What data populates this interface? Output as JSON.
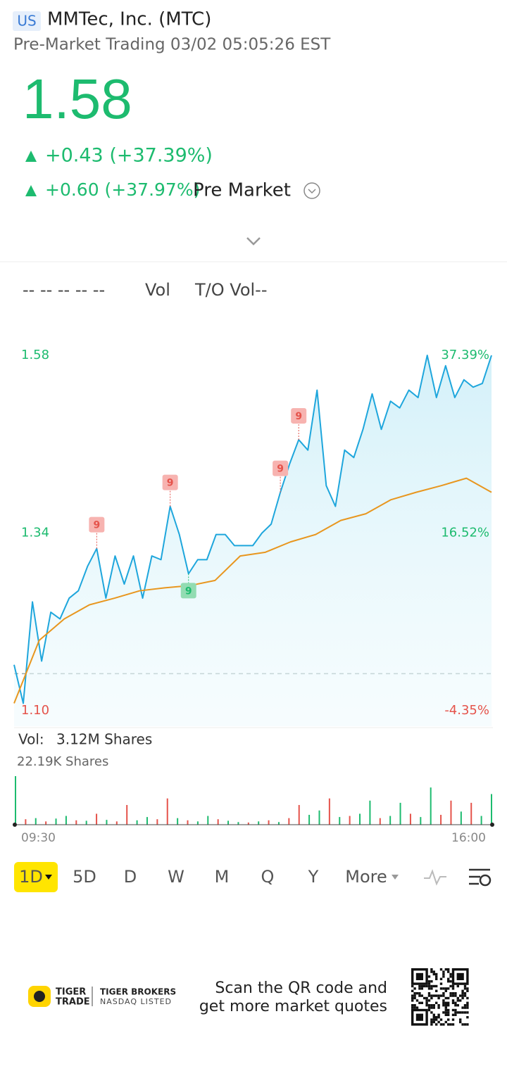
{
  "header": {
    "market": "US",
    "name": "MMTec, Inc. (MTC)",
    "status": "Pre-Market Trading 03/02 05:05:26 EST"
  },
  "quote": {
    "price": "1.58",
    "change": "+0.43 (+37.39%)",
    "premarket_change": "+0.60 (+37.97%)",
    "premarket_label": "Pre Market"
  },
  "indicators": {
    "placeholders": "-- -- -- -- --",
    "vol": "Vol",
    "turnover": "T/O Vol--"
  },
  "chart_data": [
    {
      "type": "line",
      "ylim": [
        1.1,
        1.58
      ],
      "yticks": [
        1.58,
        1.34,
        {
          "value": 1.1,
          "label": "1.10"
        }
      ],
      "y2lim": [
        -4.35,
        37.39
      ],
      "y2ticks": [
        {
          "value": 37.39,
          "label": "37.39%"
        },
        {
          "value": 16.52,
          "label": "16.52%"
        },
        {
          "value": -4.35,
          "label": "-4.35%"
        }
      ],
      "reference_line": 1.15,
      "series": [
        {
          "color": "#1ea6dc",
          "values": [
            1.162,
            1.11,
            1.247,
            1.167,
            1.233,
            1.224,
            1.252,
            1.262,
            1.295,
            1.319,
            1.252,
            1.309,
            1.271,
            1.309,
            1.252,
            1.309,
            1.304,
            1.376,
            1.338,
            1.285,
            1.304,
            1.304,
            1.338,
            1.338,
            1.323,
            1.323,
            1.323,
            1.34,
            1.352,
            1.395,
            1.433,
            1.466,
            1.452,
            1.533,
            1.404,
            1.376,
            1.452,
            1.442,
            1.48,
            1.528,
            1.48,
            1.518,
            1.509,
            1.533,
            1.523,
            1.58,
            1.523,
            1.566,
            1.523,
            1.547,
            1.537,
            1.542,
            1.58
          ]
        },
        {
          "color": "#e8961e",
          "values": [
            1.11,
            1.195,
            1.224,
            1.243,
            1.252,
            1.262,
            1.266,
            1.269,
            1.276,
            1.309,
            1.314,
            1.328,
            1.338,
            1.357,
            1.366,
            1.385,
            1.395,
            1.404,
            1.414,
            1.395
          ]
        }
      ],
      "signals": [
        {
          "text": "9",
          "kind": "sell",
          "point": 9
        },
        {
          "text": "9",
          "kind": "sell",
          "point": 17
        },
        {
          "text": "9",
          "kind": "buy",
          "point": 19
        },
        {
          "text": "9",
          "kind": "sell",
          "point": 29
        },
        {
          "text": "9",
          "kind": "sell",
          "point": 31
        }
      ]
    },
    {
      "type": "bar",
      "title": "Vol:",
      "total": "3.12M Shares",
      "ylim": [
        0,
        22190
      ],
      "yticks": [
        {
          "value": 22190,
          "label": "22.19K Shares"
        }
      ],
      "time_labels": [
        "09:30",
        "16:00"
      ],
      "values": [
        22190,
        2500,
        3000,
        1500,
        2800,
        4000,
        2000,
        1800,
        5000,
        2200,
        1500,
        9000,
        2000,
        3500,
        2500,
        12000,
        3000,
        2000,
        1500,
        4000,
        2500,
        1800,
        1200,
        1000,
        1500,
        2000,
        1200,
        3000,
        9000,
        4500,
        6500,
        12000,
        3500,
        4000,
        5000,
        11000,
        3000,
        4000,
        10000,
        5000,
        3500,
        17000,
        4500,
        11000,
        6000,
        10000,
        4000,
        14000
      ],
      "colors": [
        "#1dbb6f",
        "#e5534b",
        "#1dbb6f",
        "#e5534b",
        "#1dbb6f",
        "#1dbb6f",
        "#e5534b",
        "#1dbb6f",
        "#e5534b",
        "#1dbb6f",
        "#e5534b",
        "#e5534b",
        "#1dbb6f",
        "#1dbb6f",
        "#e5534b",
        "#e5534b",
        "#1dbb6f",
        "#e5534b",
        "#1dbb6f",
        "#1dbb6f",
        "#e5534b",
        "#1dbb6f",
        "#1dbb6f",
        "#e5534b",
        "#1dbb6f",
        "#e5534b",
        "#1dbb6f",
        "#e5534b",
        "#e5534b",
        "#1dbb6f",
        "#1dbb6f",
        "#e5534b",
        "#1dbb6f",
        "#e5534b",
        "#1dbb6f",
        "#1dbb6f",
        "#e5534b",
        "#1dbb6f",
        "#1dbb6f",
        "#e5534b",
        "#1dbb6f",
        "#1dbb6f",
        "#e5534b",
        "#e5534b",
        "#1dbb6f",
        "#e5534b",
        "#1dbb6f",
        "#1dbb6f"
      ]
    }
  ],
  "tabs": [
    "1D",
    "5D",
    "D",
    "W",
    "M",
    "Q",
    "Y",
    "More"
  ],
  "footer": {
    "logo_top": "TIGER",
    "logo_bottom": "TRADE",
    "broker": "TIGER BROKERS",
    "listing": "NASDAQ LISTED",
    "scan_line1": "Scan the QR code and",
    "scan_line2": "get more market quotes"
  }
}
